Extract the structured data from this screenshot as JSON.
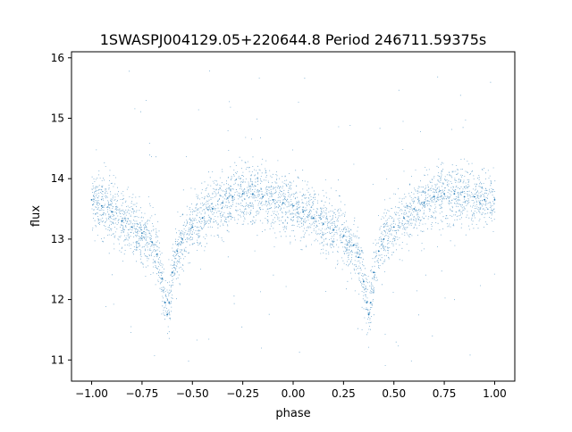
{
  "chart_data": {
    "type": "scatter",
    "title": "1SWASPJ004129.05+220644.8 Period 246711.59375s",
    "xlabel": "phase",
    "ylabel": "flux",
    "xlim": [
      -1.1,
      1.1
    ],
    "ylim": [
      10.65,
      16.1
    ],
    "xticks": [
      -1.0,
      -0.75,
      -0.5,
      -0.25,
      0.0,
      0.25,
      0.5,
      0.75,
      1.0
    ],
    "xtick_labels": [
      "−1.00",
      "−0.75",
      "−0.50",
      "−0.25",
      "0.00",
      "0.25",
      "0.50",
      "0.75",
      "1.00"
    ],
    "yticks": [
      11,
      12,
      13,
      14,
      15,
      16
    ],
    "ytick_labels": [
      "11",
      "12",
      "13",
      "14",
      "15",
      "16"
    ],
    "grid": false,
    "legend": "none",
    "marker_color": "#1f77b4",
    "series": [
      {
        "x": [
          -1.0,
          -0.95,
          -0.9,
          -0.85,
          -0.8,
          -0.75,
          -0.7,
          -0.675,
          -0.65,
          -0.635,
          -0.625,
          -0.615,
          -0.6,
          -0.575,
          -0.55,
          -0.5,
          -0.45,
          -0.4,
          -0.35,
          -0.3,
          -0.25,
          -0.2,
          -0.15,
          -0.1,
          -0.05,
          0.0,
          0.05,
          0.1,
          0.15,
          0.2,
          0.25,
          0.3,
          0.325,
          0.35,
          0.365,
          0.375,
          0.385,
          0.4,
          0.425,
          0.45,
          0.5,
          0.55,
          0.6,
          0.65,
          0.7,
          0.75,
          0.8,
          0.85,
          0.9,
          0.95,
          1.0
        ],
        "y": [
          13.65,
          13.55,
          13.45,
          13.3,
          13.2,
          13.1,
          12.95,
          12.75,
          12.35,
          11.95,
          11.75,
          11.95,
          12.45,
          12.8,
          13.0,
          13.2,
          13.35,
          13.5,
          13.6,
          13.7,
          13.75,
          13.75,
          13.7,
          13.65,
          13.6,
          13.55,
          13.45,
          13.35,
          13.25,
          13.15,
          13.05,
          12.9,
          12.7,
          12.3,
          11.95,
          11.75,
          11.95,
          12.45,
          12.8,
          13.0,
          13.2,
          13.35,
          13.5,
          13.6,
          13.7,
          13.75,
          13.75,
          13.7,
          13.7,
          13.65,
          13.65
        ]
      }
    ]
  }
}
